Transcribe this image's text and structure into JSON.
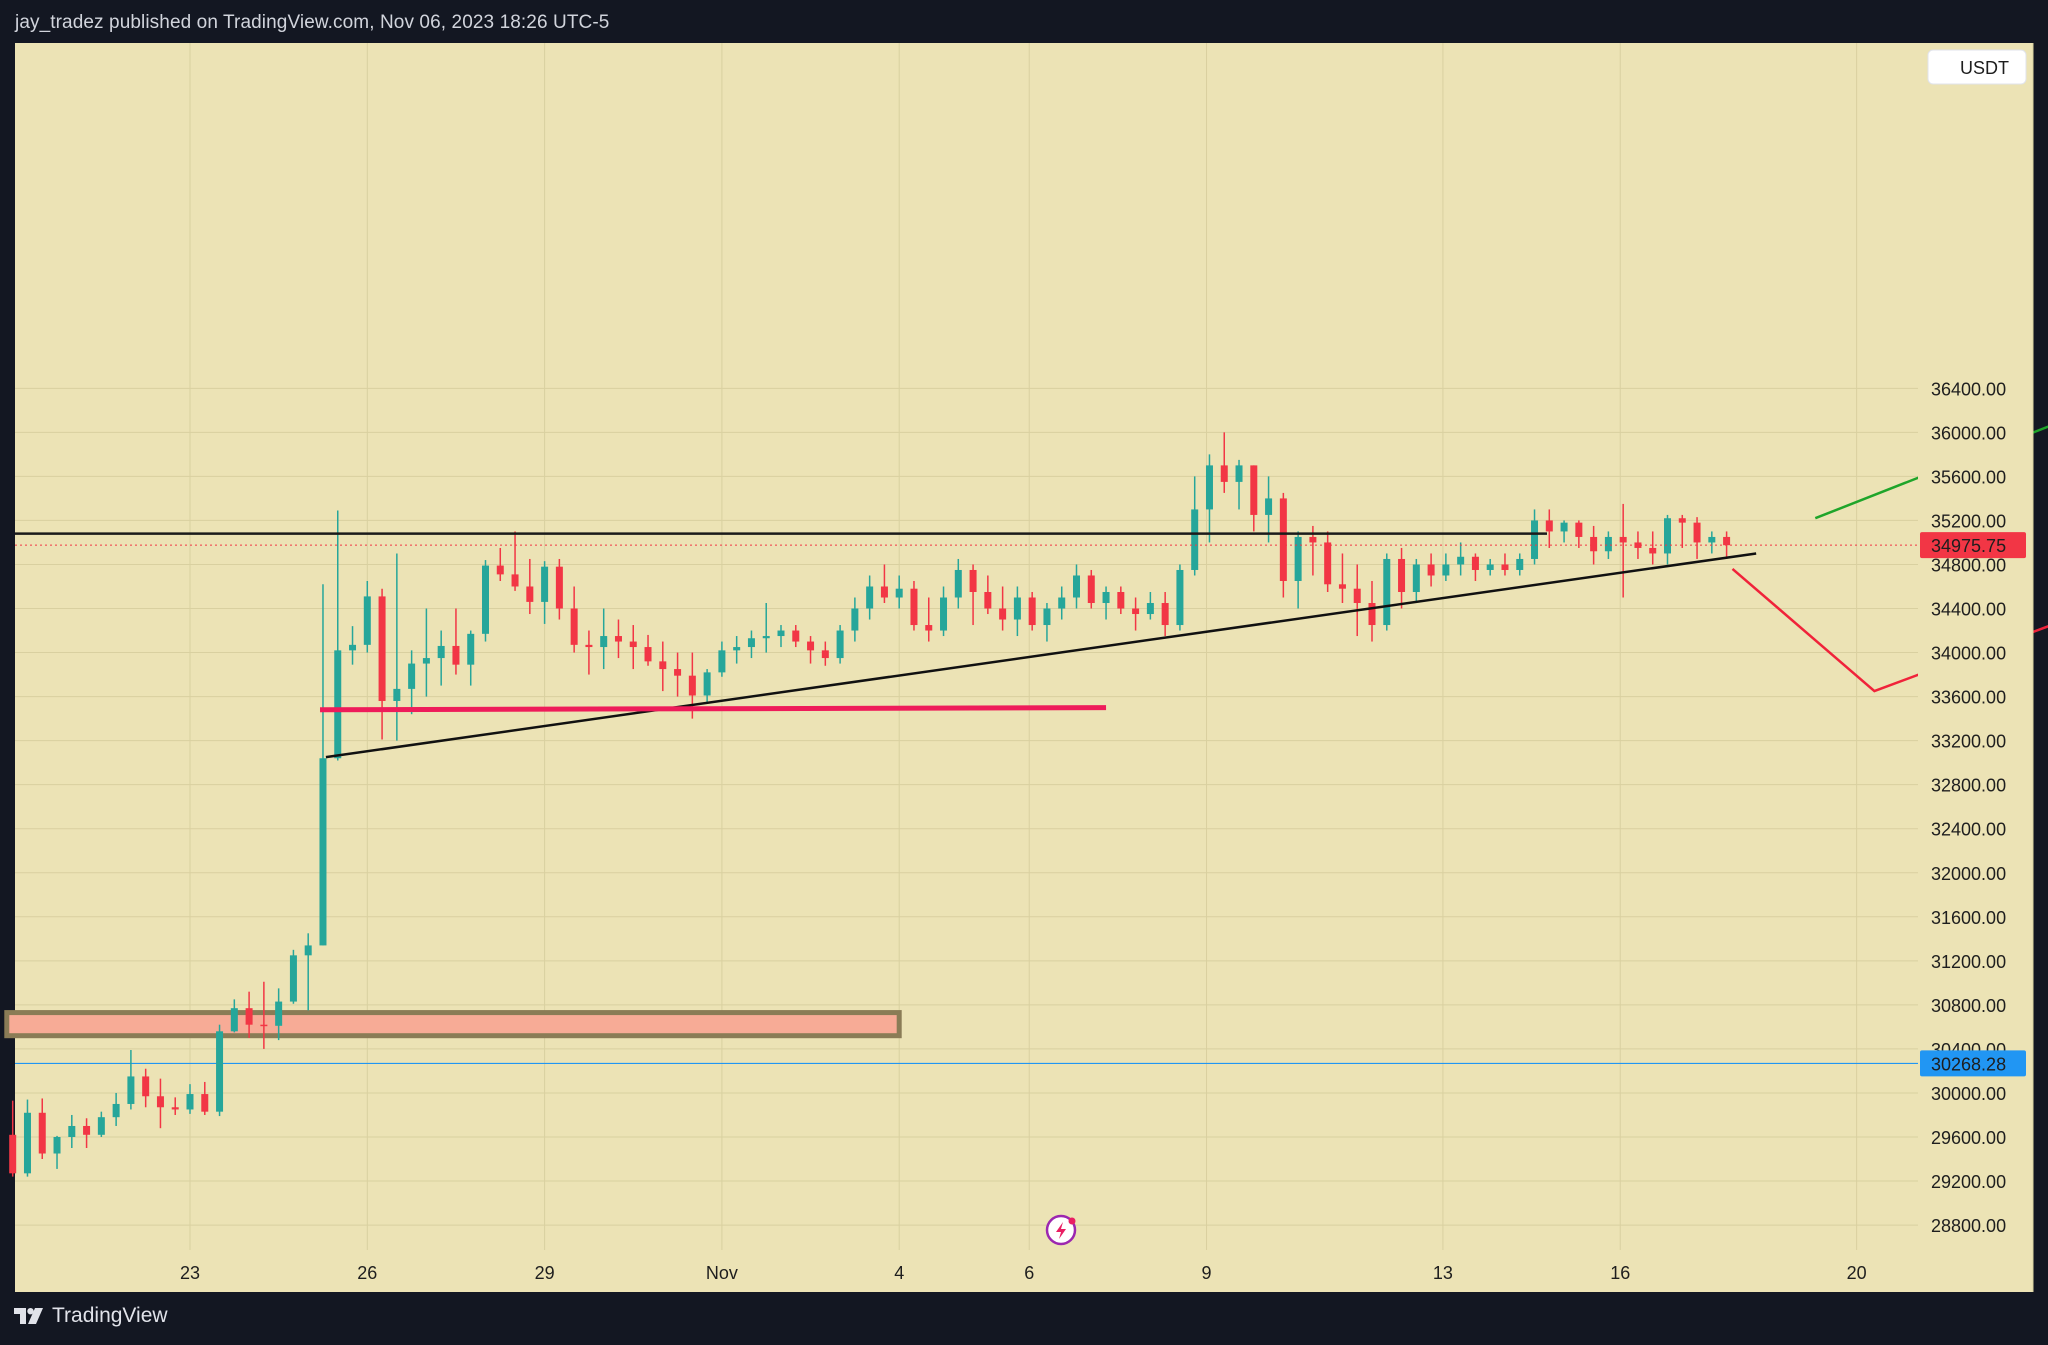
{
  "header": {
    "publish_info": "jay_tradez published on TradingView.com, Nov 06, 2023 18:26 UTC-5"
  },
  "footer": {
    "brand_label": "TradingView"
  },
  "price_axis": {
    "currency_button": "USDT",
    "last_price_label": "34975.75",
    "blue_level_label": "30268.28"
  },
  "chart_data": {
    "type": "candlestick",
    "symbol_currency": "USDT",
    "last_price": 34975.75,
    "horizontal_level": 30268.28,
    "y_ticks": [
      "36400.00",
      "36000.00",
      "35600.00",
      "35200.00",
      "34800.00",
      "34400.00",
      "34000.00",
      "33600.00",
      "33200.00",
      "32800.00",
      "32400.00",
      "32000.00",
      "31600.00",
      "31200.00",
      "30800.00",
      "30400.00",
      "30000.00",
      "29600.00",
      "29200.00",
      "28800.00"
    ],
    "x_ticks": [
      "23",
      "26",
      "29",
      "Nov",
      "4",
      "6",
      "9",
      "13",
      "16",
      "20"
    ],
    "ylim": [
      28550,
      36860
    ],
    "colors": {
      "background": "#ece3b5",
      "up": "#26a69a",
      "down": "#f23645",
      "projection_up": "#1fa52a",
      "projection_down": "#f0233a",
      "support_line": "#ee1c5a",
      "demand_zone": "#f7ab96",
      "level_line": "#2196f3"
    },
    "candles": [
      [
        20.0,
        29620,
        29930,
        29240,
        29270
      ],
      [
        20.25,
        29270,
        29940,
        29240,
        29820
      ],
      [
        20.5,
        29820,
        29950,
        29400,
        29450
      ],
      [
        20.75,
        29450,
        29610,
        29310,
        29600
      ],
      [
        21.0,
        29600,
        29800,
        29500,
        29700
      ],
      [
        21.25,
        29700,
        29770,
        29500,
        29620
      ],
      [
        21.5,
        29620,
        29830,
        29600,
        29780
      ],
      [
        21.75,
        29780,
        30000,
        29700,
        29900
      ],
      [
        22.0,
        29900,
        30390,
        29850,
        30150
      ],
      [
        22.25,
        30150,
        30220,
        29870,
        29970
      ],
      [
        22.5,
        29970,
        30130,
        29680,
        29870
      ],
      [
        22.75,
        29870,
        29960,
        29800,
        29850
      ],
      [
        23.0,
        29850,
        30080,
        29810,
        29990
      ],
      [
        23.25,
        29990,
        30100,
        29800,
        29830
      ],
      [
        23.5,
        29830,
        30620,
        29790,
        30560
      ],
      [
        23.75,
        30560,
        30850,
        30550,
        30770
      ],
      [
        24.0,
        30770,
        30920,
        30500,
        30620
      ],
      [
        24.25,
        30620,
        31010,
        30400,
        30610
      ],
      [
        24.5,
        30610,
        30950,
        30480,
        30830
      ],
      [
        24.75,
        30830,
        31300,
        30810,
        31250
      ],
      [
        25.0,
        31250,
        31450,
        30750,
        31340
      ],
      [
        25.25,
        31340,
        34620,
        31340,
        33040
      ],
      [
        25.5,
        33040,
        35290,
        33020,
        34020
      ],
      [
        25.75,
        34020,
        34240,
        33890,
        34070
      ],
      [
        26.0,
        34070,
        34650,
        34000,
        34510
      ],
      [
        26.25,
        34510,
        34580,
        33210,
        33560
      ],
      [
        26.5,
        33560,
        34900,
        33200,
        33670
      ],
      [
        26.75,
        33670,
        34020,
        33440,
        33900
      ],
      [
        27.0,
        33900,
        34400,
        33600,
        33950
      ],
      [
        27.25,
        33950,
        34200,
        33700,
        34060
      ],
      [
        27.5,
        34060,
        34400,
        33800,
        33890
      ],
      [
        27.75,
        33890,
        34200,
        33700,
        34170
      ],
      [
        28.0,
        34170,
        34840,
        34100,
        34790
      ],
      [
        28.25,
        34790,
        34950,
        34650,
        34710
      ],
      [
        28.5,
        34710,
        35100,
        34560,
        34600
      ],
      [
        28.75,
        34600,
        34850,
        34350,
        34460
      ],
      [
        29.0,
        34460,
        34830,
        34260,
        34780
      ],
      [
        29.25,
        34780,
        34850,
        34300,
        34400
      ],
      [
        29.5,
        34400,
        34600,
        34000,
        34070
      ],
      [
        29.75,
        34070,
        34200,
        33800,
        34050
      ],
      [
        30.0,
        34050,
        34400,
        33850,
        34150
      ],
      [
        30.25,
        34150,
        34300,
        33950,
        34100
      ],
      [
        30.5,
        34100,
        34250,
        33850,
        34050
      ],
      [
        30.75,
        34050,
        34160,
        33880,
        33920
      ],
      [
        31.0,
        33920,
        34100,
        33650,
        33850
      ],
      [
        31.25,
        33850,
        34000,
        33600,
        33790
      ],
      [
        31.5,
        33790,
        34000,
        33400,
        33610
      ],
      [
        31.75,
        33610,
        33850,
        33550,
        33820
      ],
      [
        32.0,
        33820,
        34100,
        33780,
        34020
      ],
      [
        32.25,
        34020,
        34150,
        33900,
        34050
      ],
      [
        32.5,
        34050,
        34200,
        33950,
        34130
      ],
      [
        32.75,
        34130,
        34450,
        34000,
        34150
      ],
      [
        33.0,
        34150,
        34250,
        34050,
        34200
      ],
      [
        33.25,
        34200,
        34250,
        34050,
        34100
      ],
      [
        33.5,
        34100,
        34150,
        33900,
        34020
      ],
      [
        33.75,
        34020,
        34100,
        33880,
        33950
      ],
      [
        34.0,
        33950,
        34250,
        33900,
        34200
      ],
      [
        34.25,
        34200,
        34500,
        34100,
        34400
      ],
      [
        34.5,
        34400,
        34700,
        34300,
        34600
      ],
      [
        34.75,
        34600,
        34800,
        34450,
        34500
      ],
      [
        35.0,
        34500,
        34700,
        34400,
        34580
      ],
      [
        35.25,
        34580,
        34650,
        34200,
        34250
      ],
      [
        35.5,
        34250,
        34500,
        34100,
        34200
      ],
      [
        35.75,
        34200,
        34600,
        34150,
        34500
      ],
      [
        36.0,
        34500,
        34850,
        34400,
        34750
      ],
      [
        36.25,
        34750,
        34800,
        34250,
        34550
      ],
      [
        36.5,
        34550,
        34700,
        34350,
        34400
      ],
      [
        36.75,
        34400,
        34600,
        34200,
        34300
      ],
      [
        37.0,
        34300,
        34600,
        34150,
        34500
      ],
      [
        37.25,
        34500,
        34550,
        34200,
        34250
      ],
      [
        37.5,
        34250,
        34450,
        34100,
        34400
      ],
      [
        37.75,
        34400,
        34600,
        34300,
        34500
      ],
      [
        38.0,
        34500,
        34800,
        34400,
        34700
      ],
      [
        38.25,
        34700,
        34750,
        34400,
        34450
      ],
      [
        38.5,
        34450,
        34600,
        34300,
        34550
      ],
      [
        38.75,
        34550,
        34600,
        34350,
        34400
      ],
      [
        39.0,
        34400,
        34500,
        34200,
        34350
      ],
      [
        39.25,
        34350,
        34550,
        34300,
        34450
      ],
      [
        39.5,
        34450,
        34550,
        34150,
        34250
      ],
      [
        39.75,
        34250,
        34800,
        34200,
        34750
      ],
      [
        40.0,
        34750,
        35600,
        34700,
        35300
      ],
      [
        40.25,
        35300,
        35800,
        35000,
        35700
      ],
      [
        40.5,
        35700,
        36000,
        35450,
        35550
      ],
      [
        40.75,
        35550,
        35750,
        35300,
        35700
      ],
      [
        41.0,
        35700,
        35700,
        35100,
        35250
      ],
      [
        41.25,
        35250,
        35600,
        35000,
        35400
      ],
      [
        41.5,
        35400,
        35450,
        34500,
        34650
      ],
      [
        41.75,
        34650,
        35100,
        34400,
        35050
      ],
      [
        42.0,
        35050,
        35150,
        34700,
        35000
      ],
      [
        42.25,
        35000,
        35100,
        34550,
        34620
      ],
      [
        42.5,
        34620,
        34900,
        34450,
        34580
      ],
      [
        42.75,
        34580,
        34800,
        34150,
        34450
      ],
      [
        43.0,
        34450,
        34650,
        34100,
        34250
      ],
      [
        43.25,
        34250,
        34900,
        34200,
        34850
      ],
      [
        43.5,
        34850,
        34950,
        34400,
        34550
      ],
      [
        43.75,
        34550,
        34850,
        34450,
        34800
      ],
      [
        44.0,
        34800,
        34900,
        34600,
        34700
      ],
      [
        44.25,
        34700,
        34900,
        34650,
        34800
      ],
      [
        44.5,
        34800,
        35000,
        34700,
        34870
      ],
      [
        44.75,
        34870,
        34900,
        34650,
        34750
      ],
      [
        45.0,
        34750,
        34850,
        34700,
        34800
      ],
      [
        45.25,
        34800,
        34900,
        34700,
        34750
      ],
      [
        45.5,
        34750,
        34900,
        34700,
        34850
      ],
      [
        45.75,
        34850,
        35300,
        34800,
        35200
      ],
      [
        46.0,
        35200,
        35300,
        34950,
        35100
      ],
      [
        46.25,
        35100,
        35200,
        35000,
        35180
      ],
      [
        46.5,
        35180,
        35200,
        34950,
        35050
      ],
      [
        46.75,
        35050,
        35150,
        34800,
        34920
      ],
      [
        47.0,
        34920,
        35100,
        34850,
        35050
      ],
      [
        47.25,
        35050,
        35350,
        34500,
        35000
      ],
      [
        47.5,
        35000,
        35100,
        34850,
        34950
      ],
      [
        47.75,
        34950,
        35100,
        34800,
        34900
      ],
      [
        48.0,
        34900,
        35250,
        34800,
        35220
      ],
      [
        48.25,
        35220,
        35250,
        34950,
        35180
      ],
      [
        48.5,
        35180,
        35230,
        34850,
        35000
      ],
      [
        48.75,
        35000,
        35100,
        34900,
        35050
      ],
      [
        49.0,
        35050,
        35100,
        34850,
        34975
      ]
    ],
    "resistance_line": {
      "price": 35080
    },
    "projection_up": [
      [
        50.5,
        35220
      ],
      [
        55.0,
        36170
      ],
      [
        58.0,
        35400
      ],
      [
        63.2,
        36600
      ]
    ],
    "projection_down": [
      [
        49.1,
        34760
      ],
      [
        51.5,
        33650
      ],
      [
        55.0,
        34350
      ],
      [
        58.0,
        33270
      ],
      [
        60.9,
        34200
      ],
      [
        63.2,
        33490
      ]
    ],
    "support_line": [
      [
        25.2,
        33480
      ],
      [
        38.5,
        33500
      ]
    ],
    "trendline": [
      [
        25.3,
        33050
      ],
      [
        49.5,
        34900
      ]
    ],
    "demand_zone": {
      "top": 30730,
      "bottom": 30520,
      "x_start": 19.9,
      "x_end": 35.0
    }
  }
}
